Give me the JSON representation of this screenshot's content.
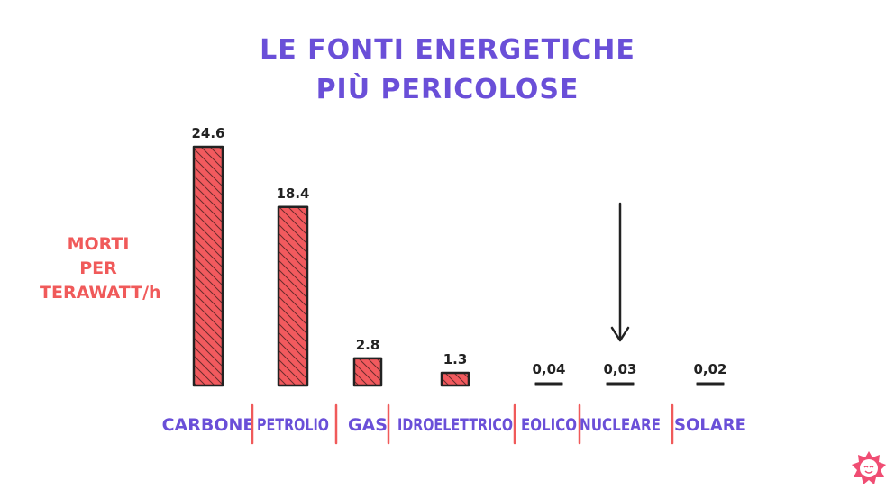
{
  "chart_data": {
    "type": "bar",
    "title_line1": "LE FONTI ENERGETICHE",
    "title_line2": "PIÙ PERICOLOSE",
    "ylabel_lines": [
      "MORTI",
      "PER",
      "TERAWATT/h"
    ],
    "categories": [
      "CARBONE",
      "PETROLIO",
      "GAS",
      "IDROELETTRICO",
      "EOLICO",
      "NUCLEARE",
      "SOLARE"
    ],
    "values": [
      24.6,
      18.4,
      2.8,
      1.3,
      0.04,
      0.03,
      0.02
    ],
    "value_labels": [
      "24.6",
      "18.4",
      "2.8",
      "1.3",
      "0,04",
      "0,03",
      "0,02"
    ],
    "highlight_category": "NUCLEARE",
    "ylim": [
      0,
      24.6
    ],
    "grid": false,
    "colors": {
      "bar": "#f25a5e",
      "bar_outline": "#222222",
      "title": "#6a4fd8",
      "category_text": "#6a4fd8",
      "separator": "#f05a5a",
      "ylabel": "#f05a5a",
      "arrow": "#222222"
    }
  }
}
